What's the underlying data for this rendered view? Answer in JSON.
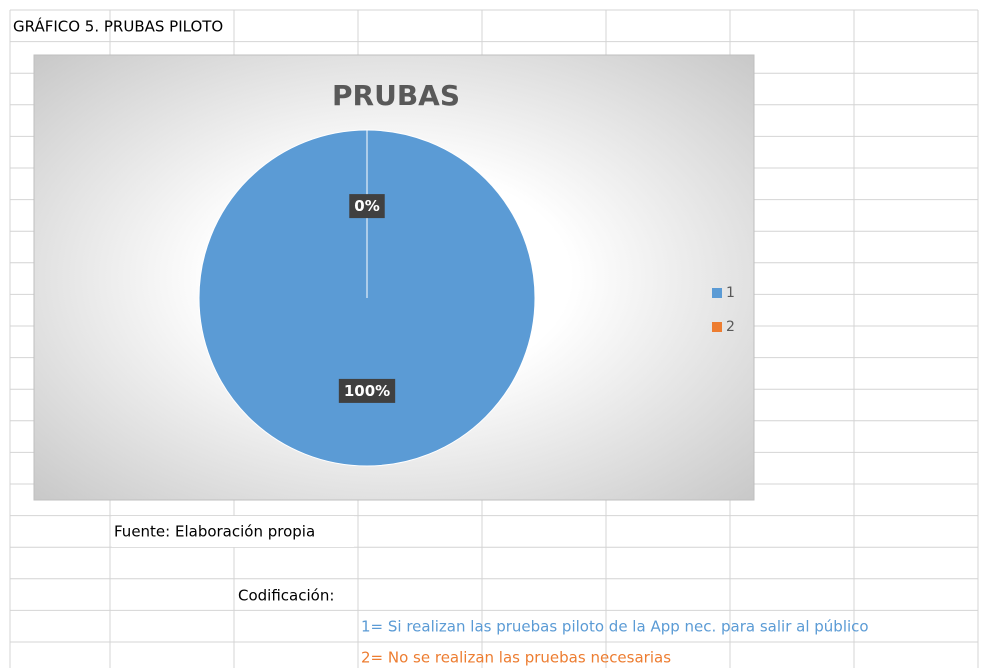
{
  "sheet": {
    "heading": "GRÁFICO 5. PRUBAS PILOTO",
    "source": "Fuente: Elaboración propia",
    "coding_title": "Codificación:",
    "coding": [
      "1= Si realizan las pruebas piloto de la App nec. para salir al público",
      "2= No se realizan las pruebas necesarias"
    ]
  },
  "chart_data": {
    "type": "pie",
    "title": "PRUBAS",
    "categories": [
      "1",
      "2"
    ],
    "values": [
      100,
      0
    ],
    "value_labels": [
      "100%",
      "0%"
    ],
    "colors": [
      "#5b9bd5",
      "#ed7d31"
    ],
    "legend": "right"
  }
}
